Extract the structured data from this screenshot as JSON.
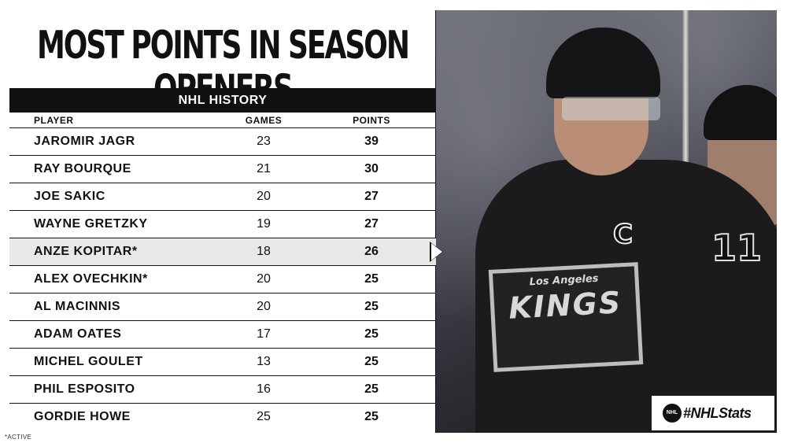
{
  "title": "MOST POINTS IN SEASON OPENERS",
  "subheader": "NHL HISTORY",
  "columns": {
    "player": "PLAYER",
    "games": "GAMES",
    "points": "POINTS"
  },
  "rows": [
    {
      "player": "JAROMIR JAGR",
      "games": "23",
      "points": "39"
    },
    {
      "player": "RAY BOURQUE",
      "games": "21",
      "points": "30"
    },
    {
      "player": "JOE SAKIC",
      "games": "20",
      "points": "27"
    },
    {
      "player": "WAYNE GRETZKY",
      "games": "19",
      "points": "27"
    },
    {
      "player": "ANZE KOPITAR*",
      "games": "18",
      "points": "26"
    },
    {
      "player": "ALEX OVECHKIN*",
      "games": "20",
      "points": "25"
    },
    {
      "player": "AL MACINNIS",
      "games": "20",
      "points": "25"
    },
    {
      "player": "ADAM OATES",
      "games": "17",
      "points": "25"
    },
    {
      "player": "MICHEL GOULET",
      "games": "13",
      "points": "25"
    },
    {
      "player": "PHIL ESPOSITO",
      "games": "16",
      "points": "25"
    },
    {
      "player": "GORDIE HOWE",
      "games": "25",
      "points": "25"
    }
  ],
  "highlighted_row": 4,
  "footnote": "*ACTIVE",
  "photo": {
    "crest_top": "Los Angeles",
    "crest_main": "KINGS",
    "jersey_number": "11",
    "captain_letter": "C"
  },
  "badge": {
    "logo_text": "NHL",
    "hashtag": "#NHLStats"
  },
  "colors": {
    "header_bg": "#111111",
    "highlight_bg": "#e8e8e8",
    "text": "#111111"
  }
}
